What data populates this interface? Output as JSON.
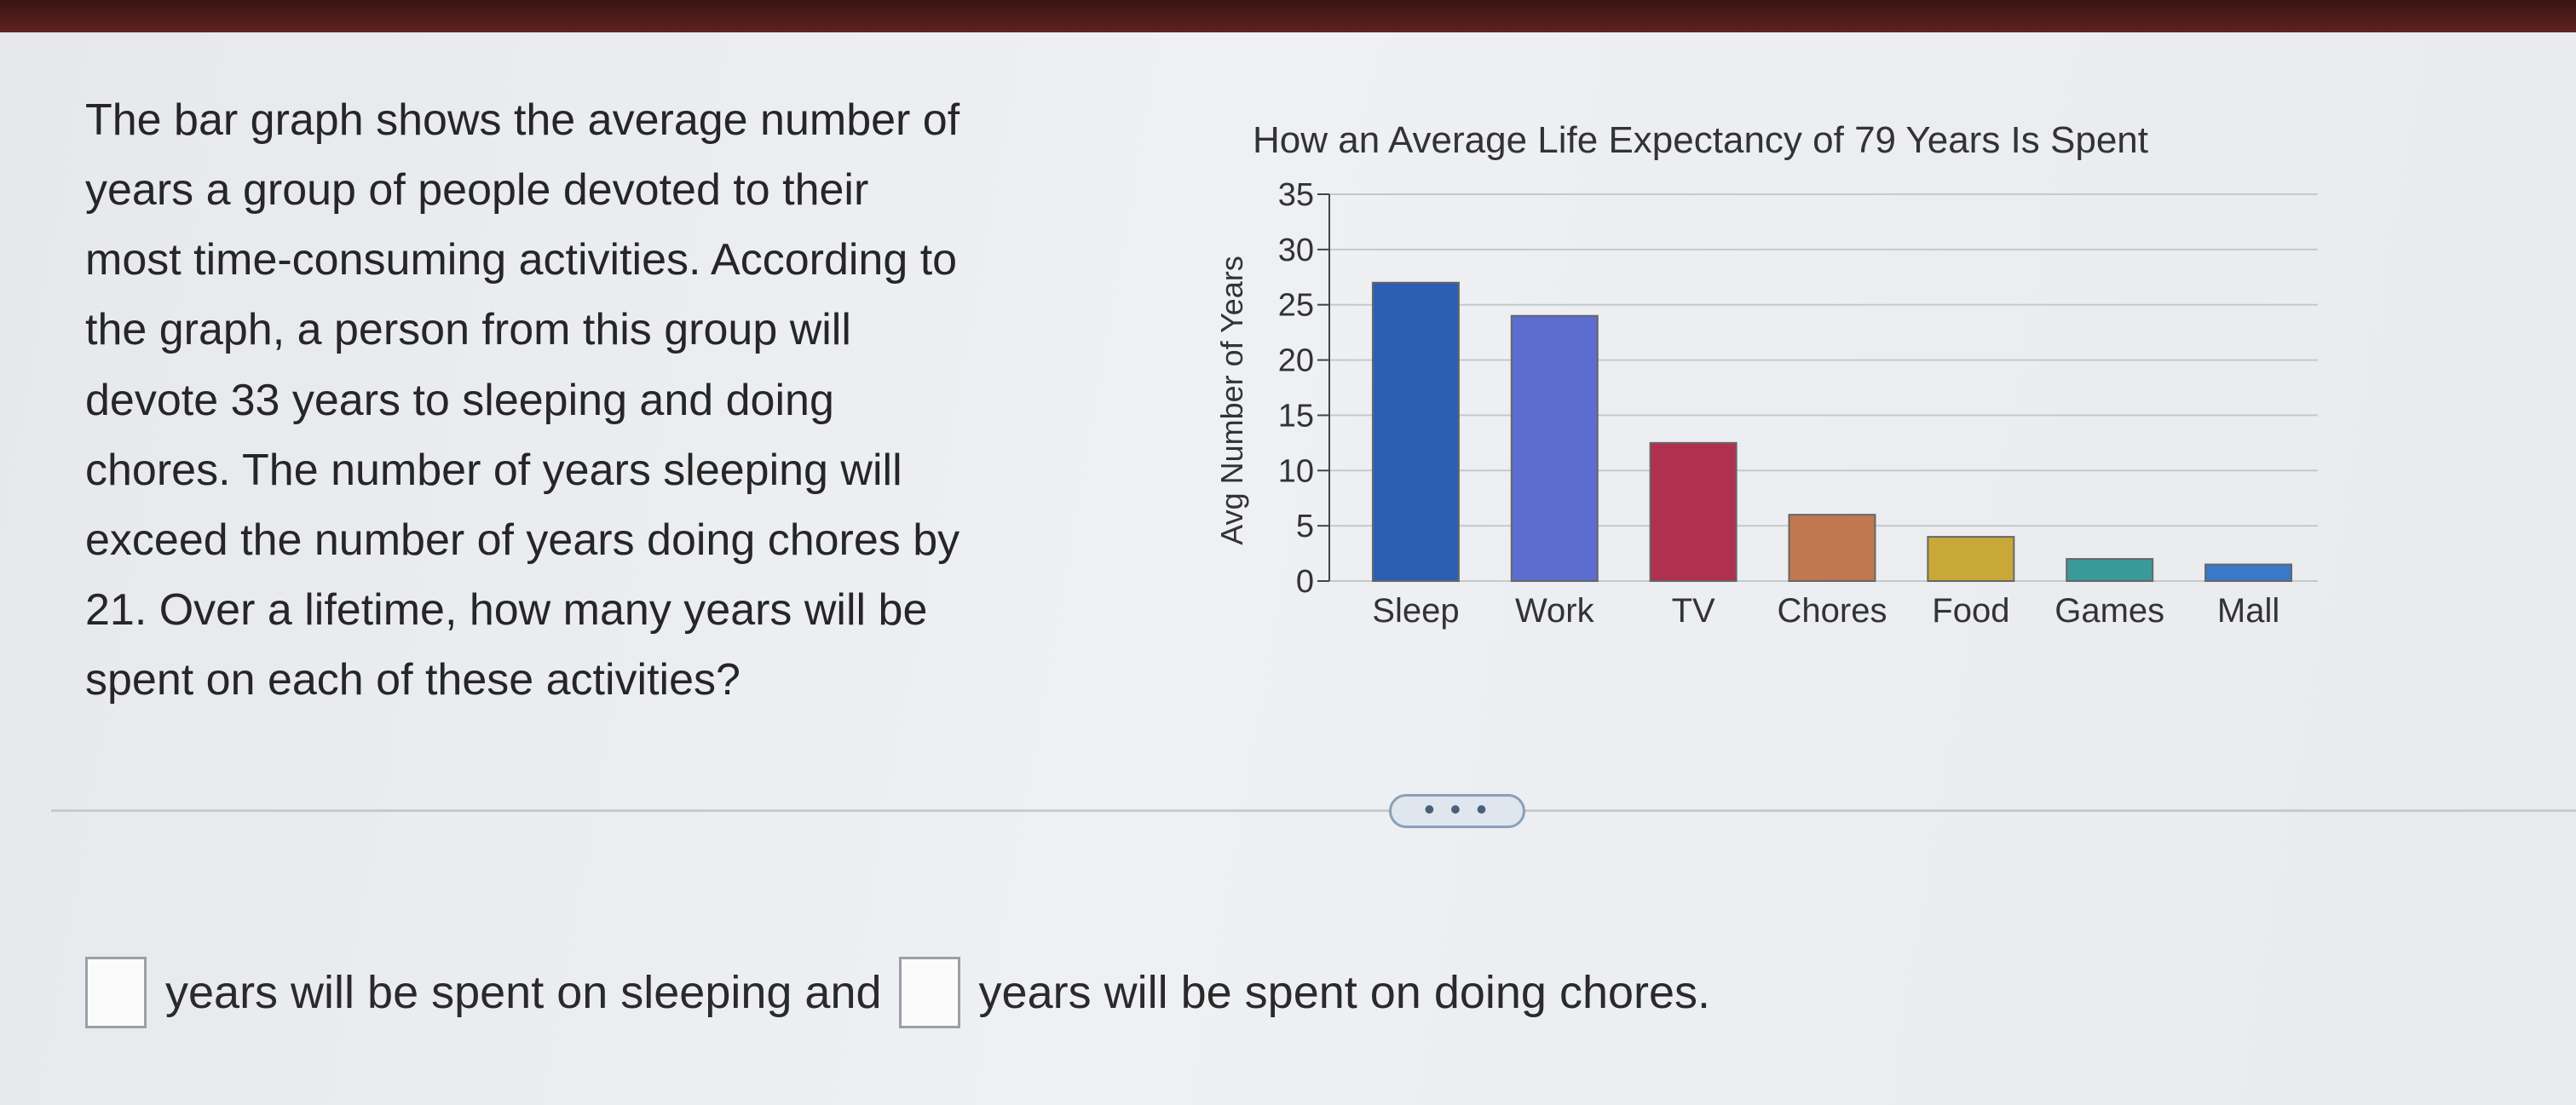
{
  "question": {
    "lines": [
      "The bar graph shows the average number of",
      "years a group of people devoted to their",
      "most time-consuming activities. According to",
      "the graph, a person from this group will",
      "devote 33 years to sleeping and doing",
      "chores. The number of years sleeping will",
      "exceed the number of years doing chores by",
      "21. Over a lifetime, how many years will be",
      "spent on each of these activities?"
    ]
  },
  "chart_data": {
    "type": "bar",
    "title": "How an Average Life Expectancy of 79 Years Is Spent",
    "ylabel": "Avg Number of Years",
    "xlabel": "",
    "categories": [
      "Sleep",
      "Work",
      "TV",
      "Chores",
      "Food",
      "Games",
      "Mall"
    ],
    "values": [
      27,
      24,
      12.5,
      6,
      4,
      2,
      1.5
    ],
    "ylim": [
      0,
      35
    ],
    "yticks": [
      "0",
      "5",
      "10",
      "15",
      "20",
      "25",
      "30",
      "35"
    ],
    "grid": true,
    "colors": [
      "#2b5fb3",
      "#5b6ed0",
      "#b03050",
      "#c07850",
      "#c8a838",
      "#3a9a9a",
      "#3a78c8"
    ]
  },
  "more_button": {
    "label": "• • •"
  },
  "answer": {
    "part1": "years will be spent on sleeping and",
    "part2": "years will be spent on doing chores."
  }
}
